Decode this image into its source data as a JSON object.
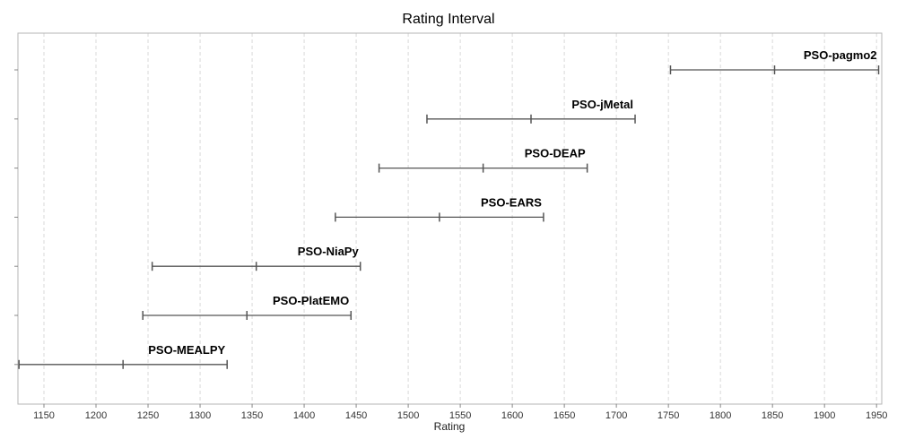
{
  "chart_data": {
    "type": "interval",
    "title": "Rating Interval",
    "xlabel": "Rating",
    "ylabel": "",
    "xlim": [
      1125,
      1955
    ],
    "x_ticks": [
      1150,
      1200,
      1250,
      1300,
      1350,
      1400,
      1450,
      1500,
      1550,
      1600,
      1650,
      1700,
      1750,
      1800,
      1850,
      1900,
      1950
    ],
    "grid": true,
    "series": [
      {
        "name": "PSO-pagmo2",
        "low": 1752,
        "mid": 1852,
        "high": 1952
      },
      {
        "name": "PSO-jMetal",
        "low": 1518,
        "mid": 1618,
        "high": 1718
      },
      {
        "name": "PSO-DEAP",
        "low": 1472,
        "mid": 1572,
        "high": 1672
      },
      {
        "name": "PSO-EARS",
        "low": 1430,
        "mid": 1530,
        "high": 1630
      },
      {
        "name": "PSO-NiaPy",
        "low": 1254,
        "mid": 1354,
        "high": 1454
      },
      {
        "name": "PSO-PlatEMO",
        "low": 1245,
        "mid": 1345,
        "high": 1445
      },
      {
        "name": "PSO-MEALPY",
        "low": 1126,
        "mid": 1226,
        "high": 1326
      }
    ]
  }
}
